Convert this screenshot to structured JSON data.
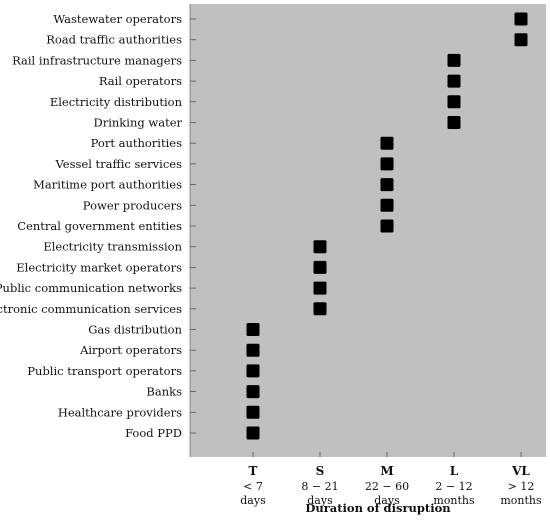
{
  "chart_data": {
    "type": "scatter",
    "xlabel": "Duration of disruption",
    "ylabel": "",
    "plot_background": "#c0c0c0",
    "marker_color": "#000000",
    "x_categories": [
      {
        "code": "T",
        "line1": "< 7",
        "line2": "days"
      },
      {
        "code": "S",
        "line1": "8 − 21",
        "line2": "days"
      },
      {
        "code": "M",
        "line1": "22 − 60",
        "line2": "days"
      },
      {
        "code": "L",
        "line1": "2 − 12",
        "line2": "months"
      },
      {
        "code": "VL",
        "line1": "> 12",
        "line2": "months"
      }
    ],
    "y_categories": [
      "Wastewater operators",
      "Road traffic authorities",
      "Rail infrastructure managers",
      "Rail operators",
      "Electricity distribution",
      "Drinking water",
      "Port authorities",
      "Vessel traffic services",
      "Maritime port authorities",
      "Power producers",
      "Central government entities",
      "Electricity transmission",
      "Electricity market operators",
      "Public communication networks",
      "Electronic communication services",
      "Gas distribution",
      "Airport operators",
      "Public transport operators",
      "Banks",
      "Healthcare providers",
      "Food PPD"
    ],
    "points": [
      {
        "sector": "Wastewater operators",
        "duration": "VL"
      },
      {
        "sector": "Road traffic authorities",
        "duration": "VL"
      },
      {
        "sector": "Rail infrastructure managers",
        "duration": "L"
      },
      {
        "sector": "Rail operators",
        "duration": "L"
      },
      {
        "sector": "Electricity distribution",
        "duration": "L"
      },
      {
        "sector": "Drinking water",
        "duration": "L"
      },
      {
        "sector": "Port authorities",
        "duration": "M"
      },
      {
        "sector": "Vessel traffic services",
        "duration": "M"
      },
      {
        "sector": "Maritime port authorities",
        "duration": "M"
      },
      {
        "sector": "Power producers",
        "duration": "M"
      },
      {
        "sector": "Central government entities",
        "duration": "M"
      },
      {
        "sector": "Electricity transmission",
        "duration": "S"
      },
      {
        "sector": "Electricity market operators",
        "duration": "S"
      },
      {
        "sector": "Public communication networks",
        "duration": "S"
      },
      {
        "sector": "Electronic communication services",
        "duration": "S"
      },
      {
        "sector": "Gas distribution",
        "duration": "T"
      },
      {
        "sector": "Airport operators",
        "duration": "T"
      },
      {
        "sector": "Public transport operators",
        "duration": "T"
      },
      {
        "sector": "Banks",
        "duration": "T"
      },
      {
        "sector": "Healthcare providers",
        "duration": "T"
      },
      {
        "sector": "Food PPD",
        "duration": "T"
      }
    ]
  }
}
